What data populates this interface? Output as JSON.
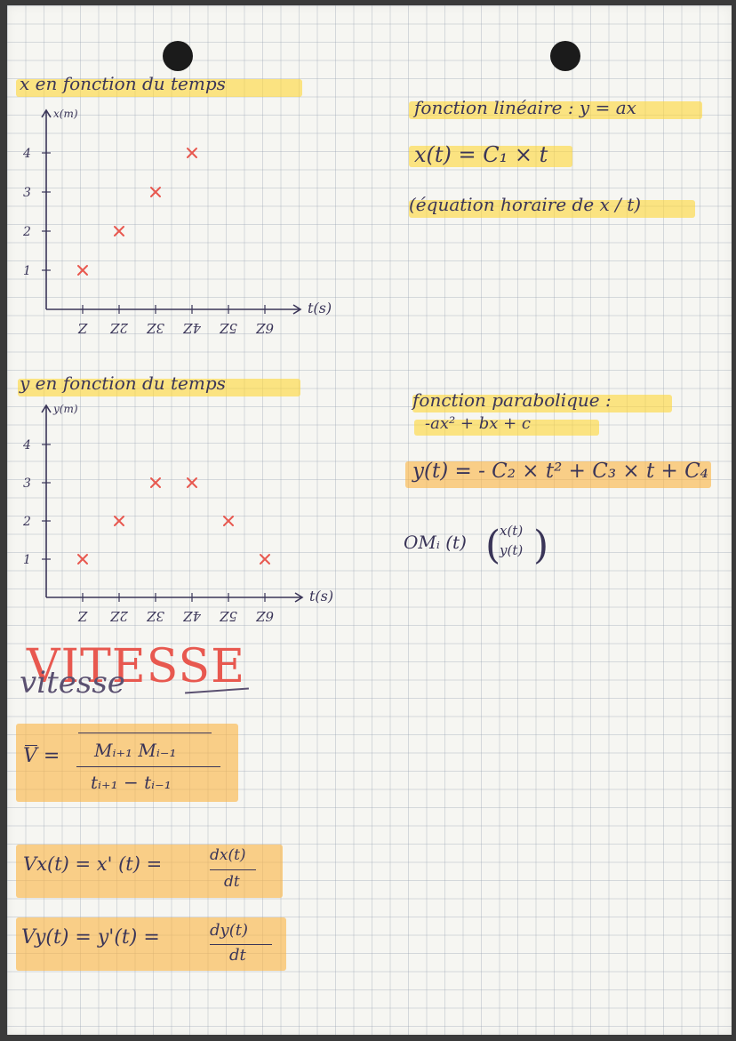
{
  "colors": {
    "ink": "#3a3558",
    "marker": "#e8584f",
    "highlight": "#fdd63c",
    "highlight_orange": "#f9b446"
  },
  "chart_data": [
    {
      "type": "scatter",
      "title": "x en fonction du temps",
      "xlabel": "t(s)",
      "ylabel": "x(m)",
      "x_tick_labels": [
        "Z",
        "2Z",
        "3Z",
        "4Z",
        "5Z",
        "6Z"
      ],
      "y_tick_labels": [
        "4",
        "3",
        "2",
        "1"
      ],
      "xlim": [
        0,
        7
      ],
      "ylim": [
        0,
        4.6
      ],
      "points": [
        {
          "x": 1,
          "y": 1
        },
        {
          "x": 2,
          "y": 2
        },
        {
          "x": 3,
          "y": 3
        },
        {
          "x": 4,
          "y": 4
        }
      ]
    },
    {
      "type": "scatter",
      "title": "y en fonction du temps",
      "xlabel": "t(s)",
      "ylabel": "y(m)",
      "x_tick_labels": [
        "Z",
        "2Z",
        "3Z",
        "4Z",
        "5Z",
        "6Z"
      ],
      "y_tick_labels": [
        "4",
        "3",
        "2",
        "1"
      ],
      "xlim": [
        0,
        7
      ],
      "ylim": [
        0,
        4.6
      ],
      "points": [
        {
          "x": 1,
          "y": 1
        },
        {
          "x": 2,
          "y": 2
        },
        {
          "x": 3,
          "y": 3
        },
        {
          "x": 4,
          "y": 3
        },
        {
          "x": 5,
          "y": 2
        },
        {
          "x": 6,
          "y": 1
        }
      ]
    }
  ],
  "notes": {
    "linear_title": "fonction linéaire : y = ax",
    "linear_eq": "x(t) = C₁ × t",
    "linear_caption": "(équation horaire de x / t)",
    "parabolic_title": "fonction parabolique :",
    "parabolic_form": "-ax² + bx + c",
    "parabolic_eq": "y(t) = - C₂ × t² + C₃ × t + C₄",
    "om_label": "OMᵢ (t)",
    "om_top": "x(t)",
    "om_bottom": "y(t)"
  },
  "vitesse": {
    "title_caps": "VITESSE",
    "title_cursive": "vitesse",
    "v_label": "V =",
    "v_num": "Mᵢ₊₁ Mᵢ₋₁",
    "v_den": "tᵢ₊₁ − tᵢ₋₁",
    "vx_lhs": "Vx(t) = x' (t) =",
    "vx_num": "dx(t)",
    "vx_den": "dt",
    "vy_lhs": "Vy(t) = y'(t) =",
    "vy_num": "dy(t)",
    "vy_den": "dt"
  }
}
